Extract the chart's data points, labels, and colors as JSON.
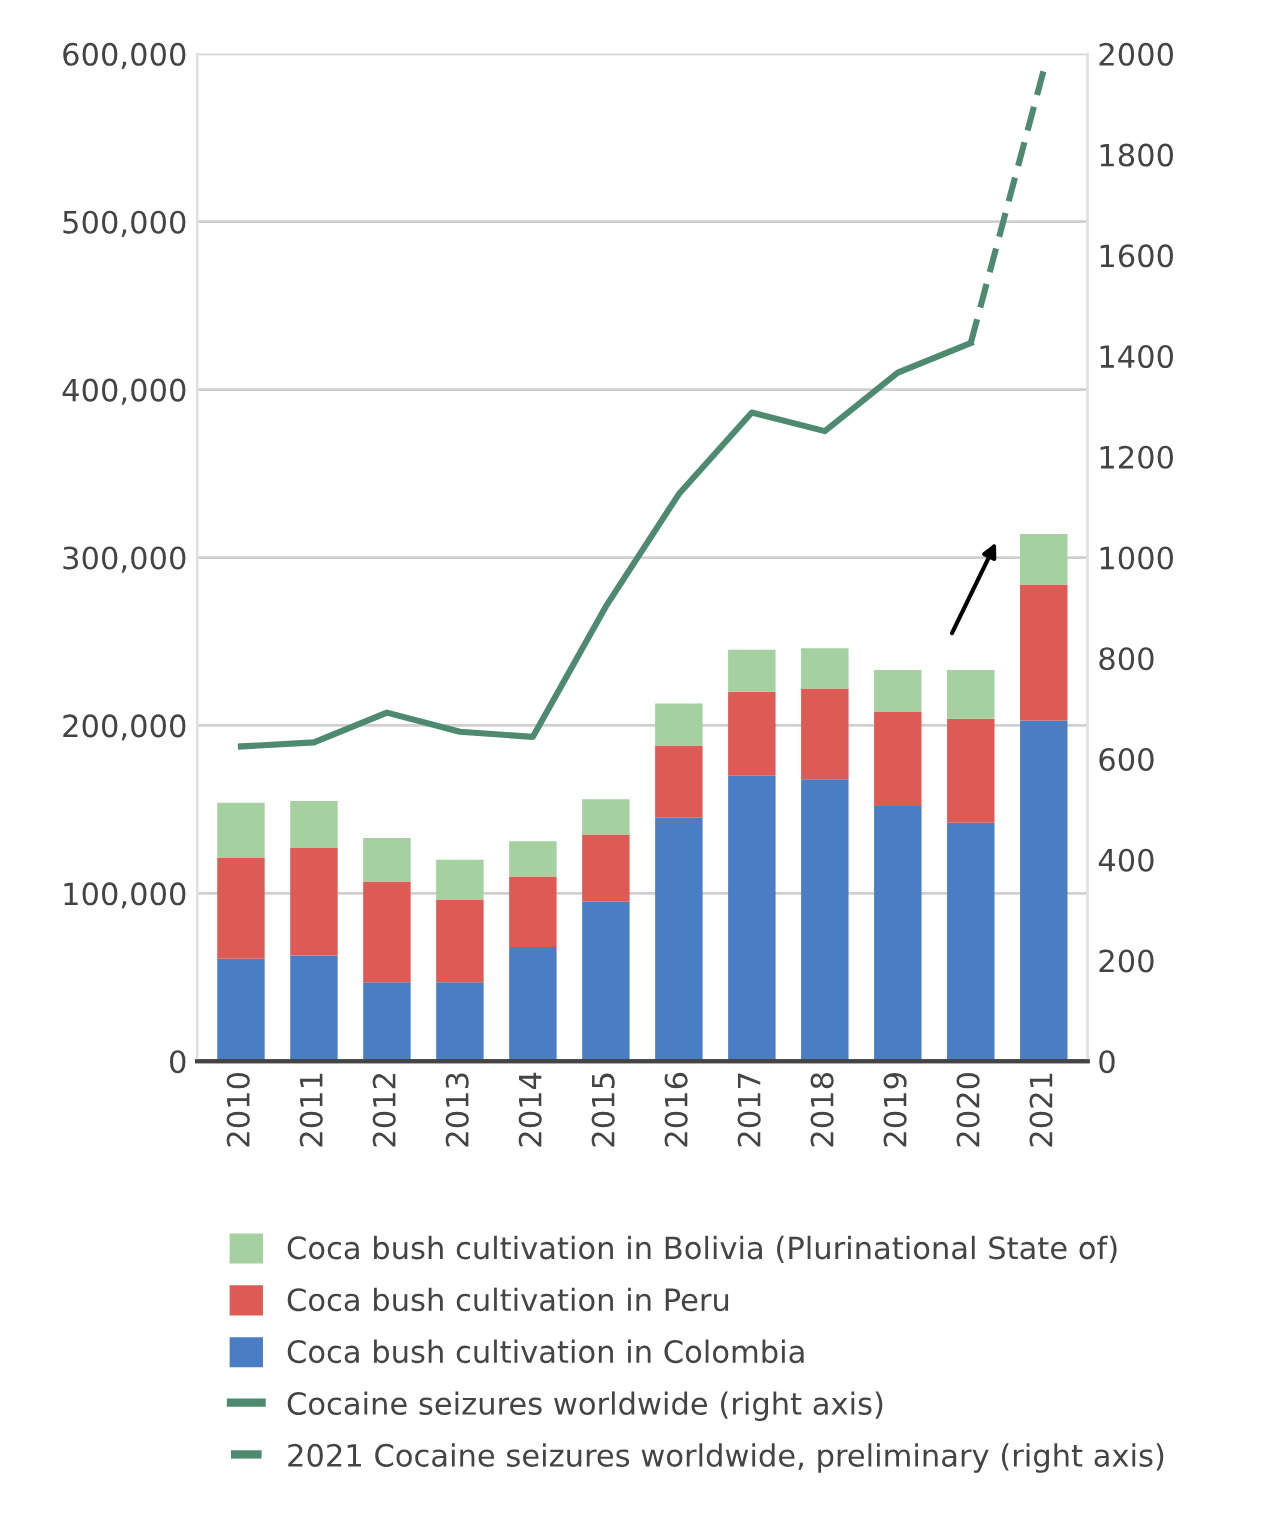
{
  "chart_data": {
    "type": "bar",
    "stacked": true,
    "categories": [
      "2010",
      "2011",
      "2012",
      "2013",
      "2014",
      "2015",
      "2016",
      "2017",
      "2018",
      "2019",
      "2020",
      "2021"
    ],
    "series": [
      {
        "name": "Coca bush cultivation in Colombia",
        "color": "#4a7ec4",
        "values": [
          61000,
          63000,
          47000,
          47000,
          68000,
          95000,
          145000,
          170000,
          168000,
          152000,
          142000,
          203000
        ]
      },
      {
        "name": "Coca bush cultivation in Peru",
        "color": "#de5a54",
        "values": [
          60000,
          64000,
          60000,
          49000,
          42000,
          40000,
          43000,
          50000,
          54000,
          56000,
          62000,
          81000
        ]
      },
      {
        "name": "Coca bush cultivation in Bolivia (Plurinational State of)",
        "color": "#a5d0a0",
        "values": [
          33000,
          28000,
          26000,
          24000,
          21000,
          21000,
          25000,
          25000,
          24000,
          25000,
          29000,
          30000
        ]
      },
      {
        "name": "Cocaine seizures worldwide (right axis)",
        "type": "line",
        "axis": "y2",
        "color": "#4e8a70",
        "line_style": "solid",
        "values": [
          625,
          633,
          692,
          654,
          644,
          903,
          1126,
          1288,
          1251,
          1367,
          1426,
          null
        ]
      },
      {
        "name": "2021 Cocaine seizures worldwide, preliminary (right axis)",
        "type": "line",
        "axis": "y2",
        "color": "#4e8a70",
        "line_style": "dashed",
        "values": [
          null,
          null,
          null,
          null,
          null,
          null,
          null,
          null,
          null,
          null,
          1426,
          1968
        ]
      }
    ],
    "ylim": [
      0,
      600000
    ],
    "yticks": [
      {
        "value": 0,
        "label": "0"
      },
      {
        "value": 100000,
        "label": "100,000"
      },
      {
        "value": 200000,
        "label": "200,000"
      },
      {
        "value": 300000,
        "label": "300,000"
      },
      {
        "value": 400000,
        "label": "400,000"
      },
      {
        "value": 500000,
        "label": "500,000"
      },
      {
        "value": 600000,
        "label": "600,000"
      }
    ],
    "y2lim": [
      0,
      2000
    ],
    "y2ticks": [
      0,
      200,
      400,
      600,
      800,
      1000,
      1200,
      1400,
      1600,
      1800,
      2000
    ],
    "grid": "y",
    "legend": "bottom"
  }
}
